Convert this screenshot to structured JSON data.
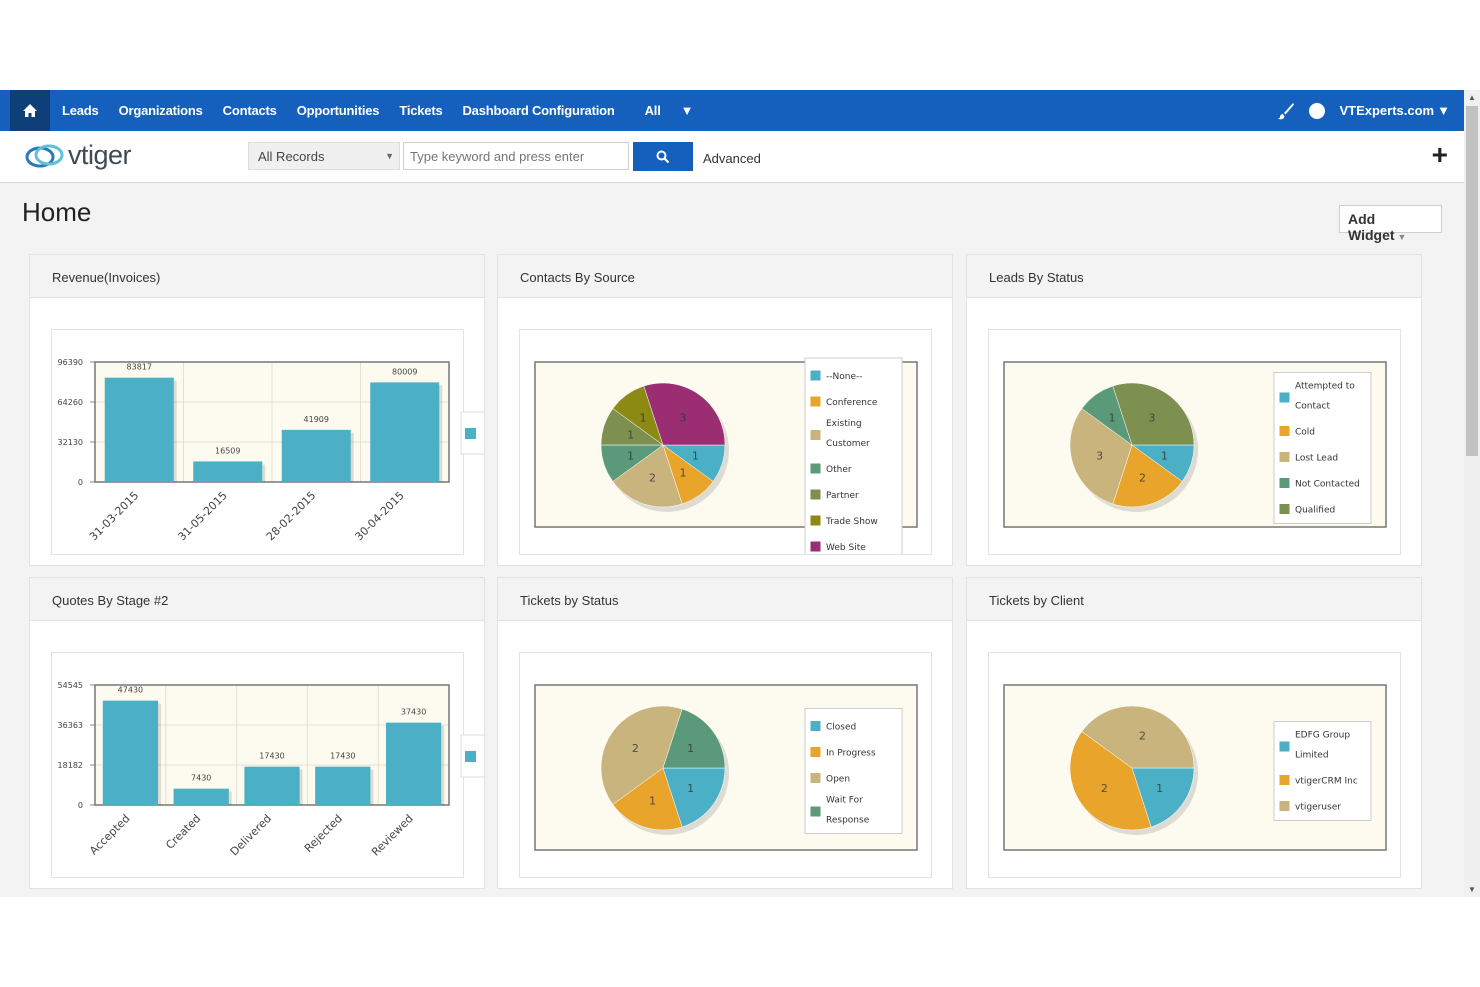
{
  "nav": {
    "links": [
      "Leads",
      "Organizations",
      "Contacts",
      "Opportunities",
      "Tickets",
      "Dashboard Configuration",
      "All"
    ],
    "user": "VTExperts.com"
  },
  "logo": {
    "text": "vtiger"
  },
  "search": {
    "scope": "All Records",
    "placeholder": "Type keyword and press enter",
    "advanced": "Advanced"
  },
  "page": {
    "title": "Home",
    "add_widget": "Add Widget"
  },
  "colors": {
    "nav": "#1560bd",
    "bar": "#4bafc5"
  },
  "widgets": [
    {
      "title": "Revenue(Invoices)",
      "chart_data": {
        "type": "bar",
        "categories": [
          "31-03-2015",
          "31-05-2015",
          "28-02-2015",
          "30-04-2015"
        ],
        "values": [
          83817,
          16509,
          41909,
          80009
        ],
        "yticks": [
          0,
          32130,
          64260,
          96390
        ],
        "ylim": [
          0,
          96390
        ]
      }
    },
    {
      "title": "Contacts By Source",
      "chart_data": {
        "type": "pie",
        "labels": [
          "--None--",
          "Conference",
          "Existing Customer",
          "Other",
          "Partner",
          "Trade Show",
          "Web Site"
        ],
        "values": [
          1,
          1,
          2,
          1,
          1,
          1,
          3
        ],
        "colors": [
          "#4bafc5",
          "#e9a42c",
          "#c9b47e",
          "#5a9a7a",
          "#7d9050",
          "#8c8a12",
          "#9b2e72"
        ]
      }
    },
    {
      "title": "Leads By Status",
      "chart_data": {
        "type": "pie",
        "labels": [
          "Attempted to Contact",
          "Cold",
          "Lost Lead",
          "Not Contacted",
          "Qualified"
        ],
        "values": [
          1,
          2,
          3,
          1,
          3
        ],
        "colors": [
          "#4bafc5",
          "#e9a42c",
          "#c9b47e",
          "#5a9a7a",
          "#7d9050"
        ]
      }
    },
    {
      "title": "Quotes By Stage #2",
      "chart_data": {
        "type": "bar",
        "categories": [
          "Accepted",
          "Created",
          "Delivered",
          "Rejected",
          "Reviewed"
        ],
        "values": [
          47430,
          7430,
          17430,
          17430,
          37430
        ],
        "yticks": [
          0,
          18182,
          36363,
          54545
        ],
        "ylim": [
          0,
          54545
        ]
      }
    },
    {
      "title": "Tickets by Status",
      "chart_data": {
        "type": "pie",
        "labels": [
          "Closed",
          "In Progress",
          "Open",
          "Wait For Response"
        ],
        "values": [
          1,
          1,
          2,
          1
        ],
        "colors": [
          "#4bafc5",
          "#e9a42c",
          "#c9b47e",
          "#5a9a7a"
        ]
      }
    },
    {
      "title": "Tickets by Client",
      "chart_data": {
        "type": "pie",
        "labels": [
          "EDFG Group Limited",
          "vtigerCRM Inc",
          "vtigeruser"
        ],
        "values": [
          1,
          2,
          2
        ],
        "colors": [
          "#4bafc5",
          "#e9a42c",
          "#c9b47e"
        ]
      }
    }
  ]
}
